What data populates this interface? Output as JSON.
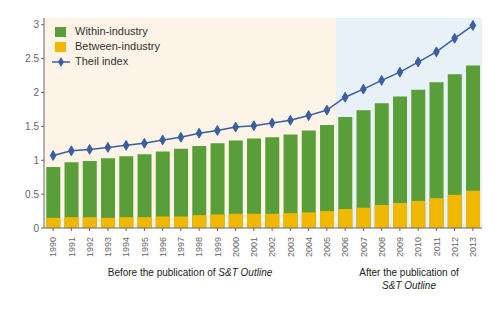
{
  "chart_data": {
    "type": "bar",
    "categories": [
      1990,
      1991,
      1992,
      1993,
      1994,
      1995,
      1996,
      1997,
      1998,
      1999,
      2000,
      2001,
      2002,
      2003,
      2004,
      2005,
      2006,
      2007,
      2008,
      2009,
      2010,
      2011,
      2012,
      2013
    ],
    "series": [
      {
        "name": "Within-industry",
        "type": "bar",
        "color": "#5a9e3a",
        "values": [
          0.9,
          0.97,
          0.99,
          1.03,
          1.06,
          1.09,
          1.13,
          1.17,
          1.21,
          1.25,
          1.29,
          1.32,
          1.34,
          1.38,
          1.44,
          1.52,
          1.64,
          1.74,
          1.84,
          1.94,
          2.04,
          2.15,
          2.27,
          2.4
        ]
      },
      {
        "name": "Between-industry",
        "type": "bar",
        "color": "#f0b800",
        "values": [
          0.15,
          0.16,
          0.16,
          0.15,
          0.16,
          0.16,
          0.17,
          0.17,
          0.19,
          0.2,
          0.21,
          0.21,
          0.21,
          0.22,
          0.23,
          0.25,
          0.28,
          0.3,
          0.34,
          0.37,
          0.4,
          0.44,
          0.49,
          0.55
        ]
      },
      {
        "name": "Theil index",
        "type": "line",
        "color": "#3a5fa0",
        "marker": "diamond",
        "values": [
          1.07,
          1.14,
          1.16,
          1.19,
          1.22,
          1.25,
          1.3,
          1.34,
          1.4,
          1.44,
          1.49,
          1.51,
          1.55,
          1.59,
          1.66,
          1.74,
          1.93,
          2.05,
          2.18,
          2.3,
          2.45,
          2.6,
          2.8,
          2.99
        ]
      }
    ],
    "stacked": false,
    "ylim": [
      0,
      3.1
    ],
    "yticks": [
      0,
      0.5,
      1,
      1.5,
      2,
      2.5,
      3
    ],
    "grid": false,
    "legend": "upper left",
    "regions": [
      {
        "from": 1990,
        "to": 2005,
        "color": "#fdf3e6"
      },
      {
        "from": 2006,
        "to": 2013,
        "color": "#e8f0f8"
      }
    ],
    "annotations": [
      {
        "text": "Before the publication of ",
        "italic_text": "S&T Outline"
      },
      {
        "text": "After the publication of",
        "italic_text": "S&T Outline"
      }
    ]
  }
}
